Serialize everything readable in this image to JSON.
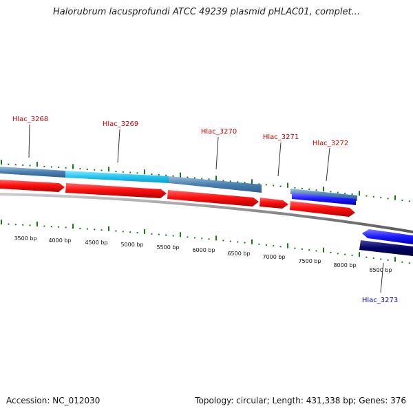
{
  "title": "Halorubrum lacusprofundi ATCC 49239 plasmid pHLAC01, complet...",
  "footer": {
    "accession_label": "Accession:",
    "accession": "NC_012030",
    "topology_label": "Topology:",
    "topology": "circular",
    "length_label": "Length:",
    "length": "431,338 bp",
    "genes_label": "Genes:",
    "genes": "376"
  },
  "ruler": {
    "labels": [
      "3500 bp",
      "4000 bp",
      "4500 bp",
      "5000 bp",
      "5500 bp",
      "6000 bp",
      "6500 bp",
      "7000 bp",
      "7500 bp",
      "8000 bp",
      "8500 bp"
    ]
  },
  "genes": [
    {
      "name": "Hlac_3268",
      "strand": "+",
      "color": "#cc0000"
    },
    {
      "name": "Hlac_3269",
      "strand": "+",
      "color": "#cc0000"
    },
    {
      "name": "Hlac_3270",
      "strand": "+",
      "color": "#cc0000"
    },
    {
      "name": "Hlac_3271",
      "strand": "+",
      "color": "#cc0000"
    },
    {
      "name": "Hlac_3272",
      "strand": "+",
      "color": "#cc0000"
    },
    {
      "name": "Hlac_3273",
      "strand": "-",
      "color": "#0000aa"
    }
  ],
  "colors": {
    "forward_cds": "#ff0000",
    "reverse_cds": "#1a1aff",
    "reverse_dark": "#000066",
    "feature_band": "#4a7fb0",
    "highlight_band": "#22c4f0",
    "backbone": "#888888",
    "tick": "#1a7a1a"
  }
}
